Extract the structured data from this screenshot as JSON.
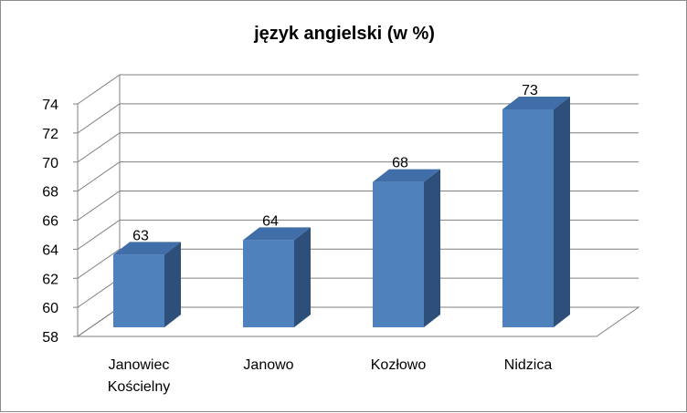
{
  "chart_data": {
    "type": "bar",
    "title": "język angielski (w %)",
    "categories": [
      [
        "Janowiec",
        "Kościelny"
      ],
      [
        "Janowo"
      ],
      [
        "Kozłowo"
      ],
      [
        "Nidzica"
      ]
    ],
    "values": [
      63,
      64,
      68,
      73
    ],
    "ylim": [
      58,
      74
    ],
    "yticks": [
      58,
      60,
      62,
      64,
      66,
      68,
      70,
      72,
      74
    ],
    "grid": true,
    "three_d": true,
    "colors": {
      "front": "#4F81BD",
      "side": "#2D4F7A",
      "top": "#3F6EA8",
      "grid": "#7f7f7f"
    }
  }
}
